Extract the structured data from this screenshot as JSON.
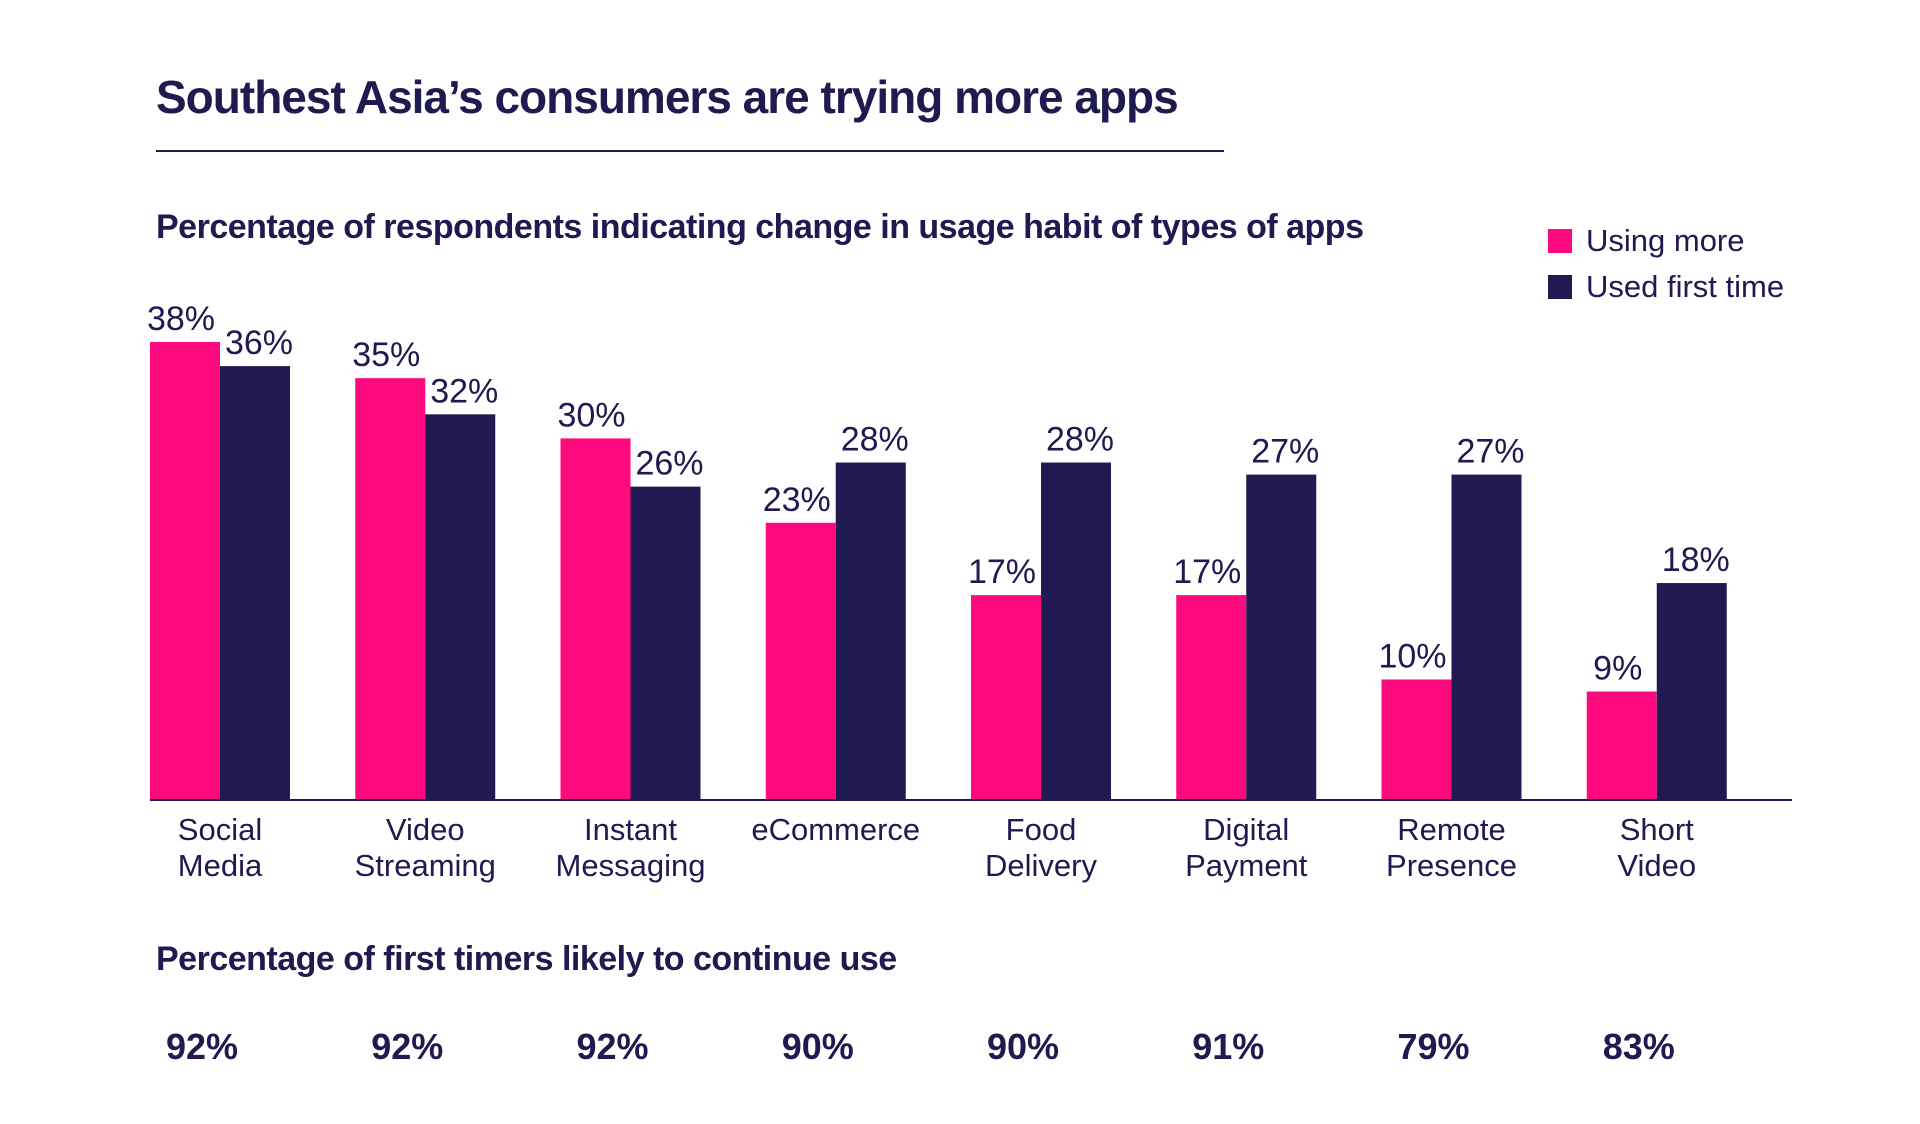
{
  "title": "Southest Asia’s consumers are trying more apps",
  "colors": {
    "using_more": "#ff0a7e",
    "used_first_time": "#211a52",
    "text": "#1f1a4f"
  },
  "chart_data": {
    "type": "bar",
    "title": "Percentage of respondents indicating change in usage habit of types of apps",
    "categories": [
      [
        "Social",
        "Media"
      ],
      [
        "Video",
        "Streaming"
      ],
      [
        "Instant",
        "Messaging"
      ],
      [
        "eCommerce"
      ],
      [
        "Food",
        "Delivery"
      ],
      [
        "Digital",
        "Payment"
      ],
      [
        "Remote",
        "Presence"
      ],
      [
        "Short",
        "Video"
      ]
    ],
    "series": [
      {
        "name": "Using more",
        "values": [
          38,
          35,
          30,
          23,
          17,
          17,
          10,
          9
        ],
        "labels": [
          "38%",
          "35%",
          "30%",
          "23%",
          "17%",
          "17%",
          "10%",
          "9%"
        ]
      },
      {
        "name": "Used first time",
        "values": [
          36,
          32,
          26,
          28,
          28,
          27,
          27,
          18
        ],
        "labels": [
          "36%",
          "32%",
          "26%",
          "28%",
          "28%",
          "27%",
          "27%",
          "18%"
        ]
      }
    ],
    "ylim": [
      0,
      38
    ],
    "legend": "top-right",
    "grid": false
  },
  "retention": {
    "title": "Percentage of first timers likely to continue use",
    "values": [
      "92%",
      "92%",
      "92%",
      "90%",
      "90%",
      "91%",
      "79%",
      "83%"
    ]
  }
}
